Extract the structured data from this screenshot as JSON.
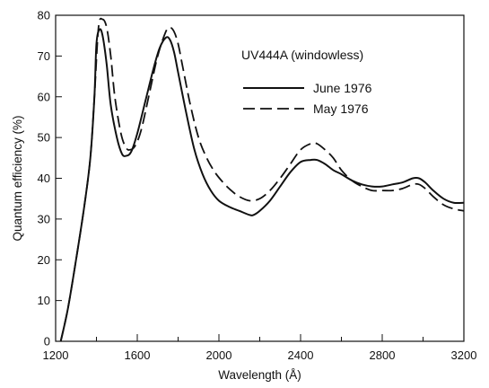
{
  "chart_data": {
    "type": "line",
    "title": "",
    "xlabel": "Wavelength (Å)",
    "ylabel": "Quantum efficiency (%)",
    "xlim": [
      1200,
      3200
    ],
    "ylim": [
      0,
      80
    ],
    "x_ticks": [
      1200,
      1600,
      2000,
      2400,
      2800,
      3200
    ],
    "y_ticks": [
      0,
      10,
      20,
      30,
      40,
      50,
      60,
      70,
      80
    ],
    "x_tick_labels": [
      "1200",
      "1600",
      "2000",
      "2400",
      "2800",
      "3200"
    ],
    "y_tick_labels": [
      "0",
      "10",
      "20",
      "30",
      "40",
      "50",
      "60",
      "70",
      "80"
    ],
    "grid": false,
    "legend": {
      "title": "UV444A (windowless)",
      "placement": "top-right"
    },
    "series": [
      {
        "name": "June 1976",
        "style": "solid",
        "color": "#111111",
        "x": [
          1225,
          1260,
          1300,
          1340,
          1370,
          1390,
          1400,
          1415,
          1430,
          1450,
          1470,
          1500,
          1525,
          1545,
          1570,
          1600,
          1640,
          1680,
          1710,
          1740,
          1760,
          1780,
          1800,
          1840,
          1880,
          1920,
          1960,
          2000,
          2050,
          2100,
          2150,
          2170,
          2200,
          2250,
          2300,
          2350,
          2400,
          2450,
          2480,
          2520,
          2560,
          2600,
          2650,
          2700,
          2750,
          2800,
          2850,
          2900,
          2950,
          2980,
          3010,
          3050,
          3100,
          3150,
          3200
        ],
        "y": [
          0,
          8,
          20,
          33,
          45,
          60,
          73,
          76.5,
          75,
          68,
          58,
          50,
          46,
          45.5,
          46.5,
          51,
          59,
          67,
          72,
          74.5,
          74,
          71,
          66,
          56,
          47,
          41,
          37,
          34.5,
          33,
          32,
          31,
          31,
          32,
          34.5,
          38,
          41.5,
          44,
          44.5,
          44.5,
          43.5,
          42,
          41,
          39.5,
          38.5,
          38,
          38,
          38.5,
          39,
          40,
          40,
          39,
          37,
          35,
          34,
          34
        ]
      },
      {
        "name": "May 1976",
        "style": "dashed",
        "color": "#111111",
        "x": [
          1225,
          1260,
          1300,
          1340,
          1370,
          1390,
          1410,
          1430,
          1450,
          1470,
          1490,
          1520,
          1545,
          1565,
          1590,
          1620,
          1660,
          1700,
          1740,
          1760,
          1780,
          1800,
          1820,
          1860,
          1900,
          1940,
          1980,
          2020,
          2060,
          2100,
          2150,
          2200,
          2250,
          2300,
          2350,
          2400,
          2450,
          2480,
          2520,
          2560,
          2600,
          2650,
          2700,
          2750,
          2800,
          2850,
          2900,
          2950,
          2980,
          3010,
          3050,
          3100,
          3150,
          3200
        ],
        "y": [
          0,
          8,
          20,
          33,
          45,
          60,
          77,
          79,
          77,
          70,
          60,
          51,
          47.5,
          47,
          48,
          52,
          61,
          70,
          76,
          77,
          76,
          73,
          68,
          58,
          50,
          45,
          41.5,
          39,
          37,
          35.5,
          34.5,
          35,
          37,
          40,
          43.5,
          47,
          48.5,
          48.5,
          47,
          45,
          42,
          39.5,
          38,
          37,
          37,
          37,
          37.5,
          38.5,
          38.5,
          37.5,
          35.5,
          33.5,
          32.5,
          32
        ]
      }
    ]
  }
}
